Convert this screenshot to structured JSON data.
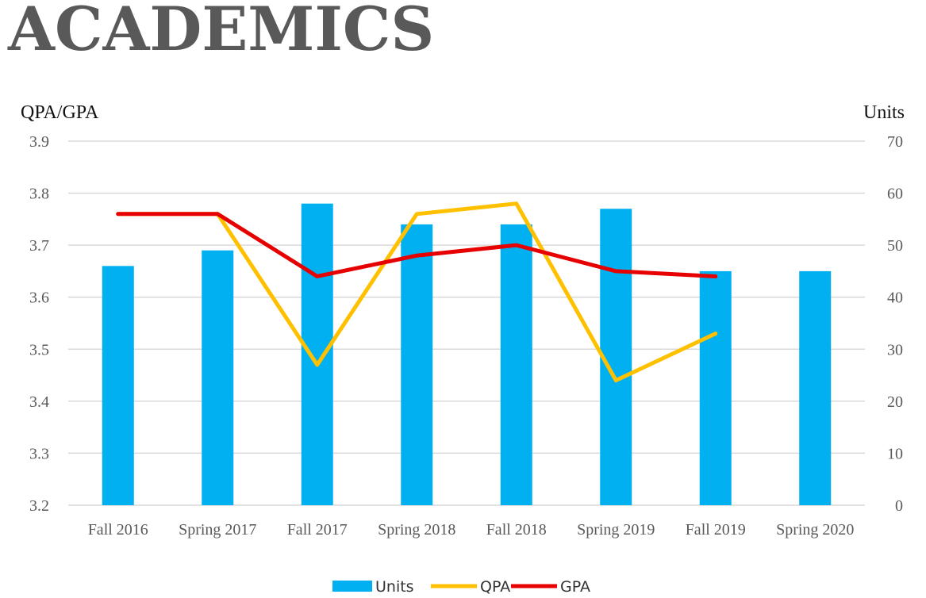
{
  "title": "ACADEMICS",
  "chart_data": {
    "type": "bar",
    "categories": [
      "Fall 2016",
      "Spring 2017",
      "Fall 2017",
      "Spring 2018",
      "Fall 2018",
      "Spring 2019",
      "Fall 2019",
      "Spring 2020"
    ],
    "y_left_label": "QPA/GPA",
    "y_right_label": "Units",
    "y_left_range": [
      3.2,
      3.9
    ],
    "y_left_ticks": [
      "3.2",
      "3.3",
      "3.4",
      "3.5",
      "3.6",
      "3.7",
      "3.8",
      "3.9"
    ],
    "y_right_range": [
      0,
      70
    ],
    "y_right_ticks": [
      "0",
      "10",
      "20",
      "30",
      "40",
      "50",
      "60",
      "70"
    ],
    "grid": true,
    "legend_position": "bottom",
    "series": [
      {
        "name": "Units",
        "kind": "bar",
        "axis": "right",
        "color": "#00b0f0",
        "values": [
          46,
          49,
          58,
          54,
          54,
          57,
          45,
          45
        ]
      },
      {
        "name": "QPA",
        "kind": "line",
        "axis": "left",
        "color": "#ffc000",
        "values": [
          3.76,
          3.76,
          3.47,
          3.76,
          3.78,
          3.44,
          3.53,
          null
        ]
      },
      {
        "name": "GPA",
        "kind": "line",
        "axis": "left",
        "color": "#e60000",
        "values": [
          3.76,
          3.76,
          3.64,
          3.68,
          3.7,
          3.65,
          3.64,
          null
        ]
      }
    ]
  }
}
